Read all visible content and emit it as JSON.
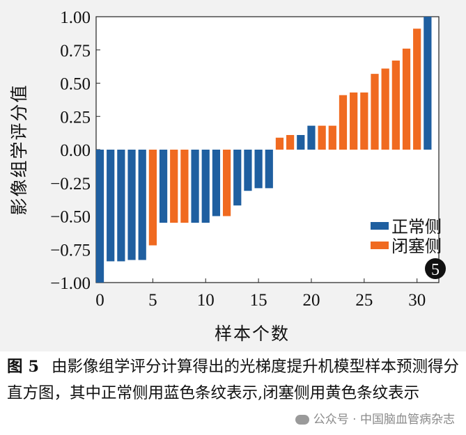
{
  "chart_data": {
    "type": "bar",
    "ylabel": "影像组学评分值",
    "xlabel": "样本个数",
    "xlim": [
      0,
      32
    ],
    "ylim": [
      -1.0,
      1.0
    ],
    "xticks": [
      0,
      5,
      10,
      15,
      20,
      25,
      30
    ],
    "yticks": [
      "1.00",
      "0.75",
      "0.50",
      "0.25",
      "0.00",
      "−0.25",
      "−0.50",
      "−0.75",
      "−1.00"
    ],
    "ytick_values": [
      1.0,
      0.75,
      0.5,
      0.25,
      0.0,
      -0.25,
      -0.5,
      -0.75,
      -1.0
    ],
    "legend_position": "lower-right",
    "badge": "5",
    "series": [
      {
        "name": "正常侧",
        "color": "#1f5fa0",
        "x": [
          0,
          1,
          2,
          3,
          4,
          6,
          9,
          10,
          11,
          13,
          14,
          15,
          16,
          19,
          20,
          31
        ],
        "values": [
          -1.0,
          -0.84,
          -0.84,
          -0.83,
          -0.83,
          -0.55,
          -0.55,
          -0.55,
          -0.5,
          -0.42,
          -0.31,
          -0.29,
          -0.29,
          0.11,
          0.18,
          1.0
        ]
      },
      {
        "name": "闭塞侧",
        "color": "#f06a20",
        "x": [
          5,
          7,
          8,
          12,
          17,
          18,
          21,
          22,
          23,
          24,
          25,
          26,
          27,
          28,
          29,
          30
        ],
        "values": [
          -0.72,
          -0.55,
          -0.55,
          -0.5,
          0.09,
          0.11,
          0.18,
          0.18,
          0.41,
          0.43,
          0.43,
          0.57,
          0.61,
          0.67,
          0.76,
          0.91
        ]
      }
    ]
  },
  "caption": {
    "label": "图 5",
    "text": "由影像组学评分计算得出的光梯度提升机模型样本预测得分直方图，其中正常侧用蓝色条纹表示,闭塞侧用黄色条纹表示"
  },
  "watermark": "公众号 · 中国脑血管病杂志"
}
